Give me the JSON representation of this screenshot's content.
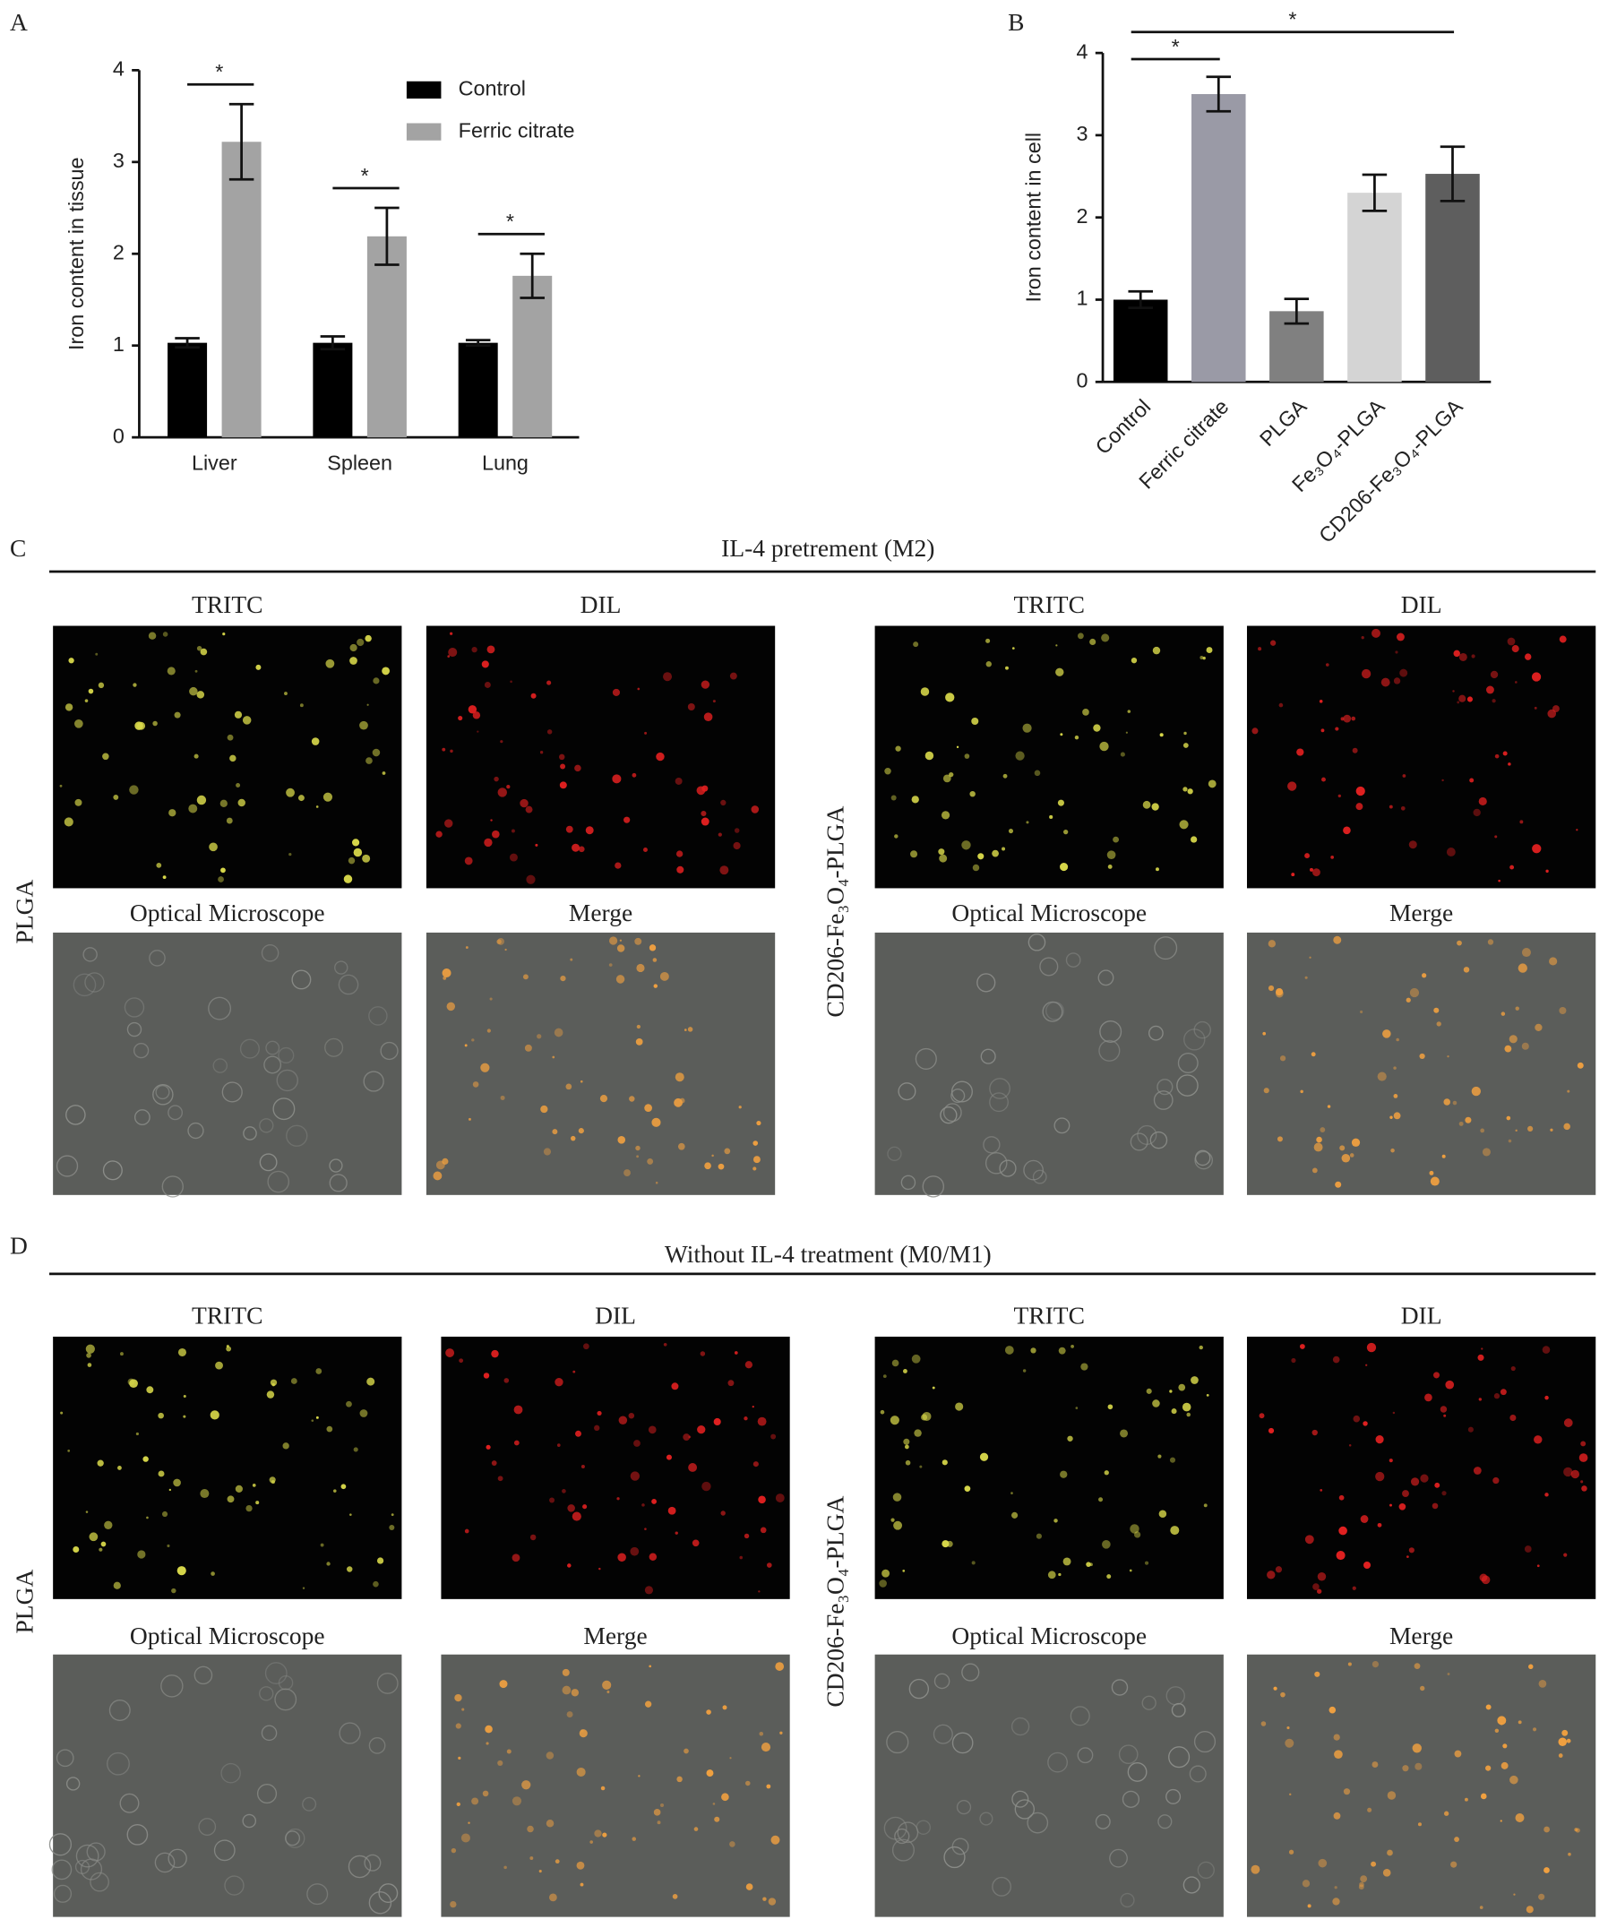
{
  "chart_data": [
    {
      "type": "bar",
      "label": "A",
      "ylabel": "Iron content in tissue",
      "categories": [
        "Liver",
        "Spleen",
        "Lung"
      ],
      "series": [
        {
          "name": "Control",
          "color": "#000000",
          "values": [
            1.03,
            1.03,
            1.03
          ],
          "errors": [
            0.05,
            0.07,
            0.03
          ]
        },
        {
          "name": "Ferric citrate",
          "color": "#a3a3a3",
          "values": [
            3.22,
            2.19,
            1.76
          ],
          "errors": [
            0.41,
            0.31,
            0.24
          ]
        }
      ],
      "ylim": [
        0,
        4
      ],
      "yticks": [
        0,
        1,
        2,
        3,
        4
      ],
      "legend": "upper right",
      "annotations": [
        "*",
        "*",
        "*"
      ]
    },
    {
      "type": "bar",
      "label": "B",
      "ylabel": "Iron content in cell",
      "categories": [
        "Control",
        "Ferric citrate",
        "PLGA",
        "Fe₃O₄-PLGA",
        "CD206-Fe₃O₄-PLGA"
      ],
      "values": [
        1.0,
        3.5,
        0.86,
        2.3,
        2.53
      ],
      "errors": [
        0.1,
        0.21,
        0.15,
        0.22,
        0.33
      ],
      "colors": [
        "#000000",
        "#9a9aa6",
        "#808080",
        "#d4d4d4",
        "#5e5e5e"
      ],
      "ylim": [
        0,
        4
      ],
      "yticks": [
        0,
        1,
        2,
        3,
        4
      ],
      "annotations": [
        "*",
        "*"
      ]
    }
  ],
  "panels": [
    {
      "label": "C",
      "title": "IL-4 pretrement (M2)",
      "groups": [
        {
          "name": "PLGA",
          "images": [
            "TRITC",
            "DIL",
            "Optical Microscope",
            "Merge"
          ]
        },
        {
          "name": "CD206-Fe₃O₄-PLGA",
          "images": [
            "TRITC",
            "DIL",
            "Optical Microscope",
            "Merge"
          ]
        }
      ]
    },
    {
      "label": "D",
      "title": "Without IL-4 treatment (M0/M1)",
      "groups": [
        {
          "name": "PLGA",
          "images": [
            "TRITC",
            "DIL",
            "Optical Microscope",
            "Merge"
          ]
        },
        {
          "name": "CD206-Fe₃O₄-PLGA",
          "images": [
            "TRITC",
            "DIL",
            "Optical Microscope",
            "Merge"
          ]
        }
      ]
    }
  ]
}
